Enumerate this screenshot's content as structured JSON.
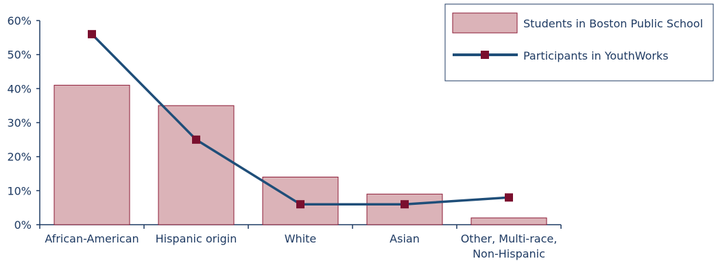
{
  "chart_data": {
    "type": "bar",
    "categories": [
      "African-American",
      "Hispanic origin",
      "White",
      "Asian",
      "Other, Multi-race, Non-Hispanic"
    ],
    "category_lines": [
      [
        "African-American"
      ],
      [
        "Hispanic origin"
      ],
      [
        "White"
      ],
      [
        "Asian"
      ],
      [
        "Other, Multi-race,",
        "Non-Hispanic"
      ]
    ],
    "series": [
      {
        "name": "Students in Boston Public School",
        "kind": "bar",
        "values": [
          41,
          35,
          14,
          9,
          2
        ]
      },
      {
        "name": "Participants in YouthWorks",
        "kind": "line",
        "values": [
          56,
          25,
          6,
          6,
          8
        ]
      }
    ],
    "yticks": [
      "0%",
      "10%",
      "20%",
      "30%",
      "40%",
      "50%",
      "60%"
    ],
    "ylim": [
      0,
      60
    ],
    "title": "",
    "xlabel": "",
    "ylabel": "",
    "grid": false,
    "legend_position": "top-right",
    "colors": {
      "bar_fill": "#dbb3b8",
      "bar_stroke": "#8b1a35",
      "line": "#1f4e79",
      "marker": "#7a0f2e",
      "axis": "#1f3b63",
      "text": "#1f3b63"
    }
  }
}
